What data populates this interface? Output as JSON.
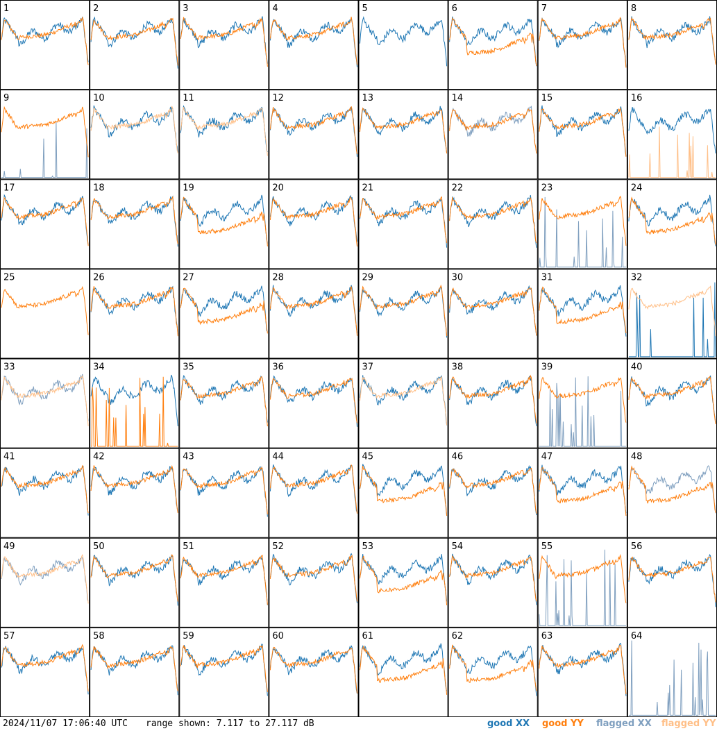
{
  "footer": {
    "timestamp": "2024/11/07 17:06:40 UTC",
    "range_text": "range shown: 7.117 to 27.117 dB"
  },
  "legend": {
    "good_xx": "good XX",
    "good_yy": "good YY",
    "flagged_xx": "flagged XX",
    "flagged_yy": "flagged YY"
  },
  "colors": {
    "good_xx": "#1f77b4",
    "good_yy": "#ff7f0e",
    "flagged_xx": "#7f9fbf",
    "flagged_yy": "#ffbf87",
    "panel_border": "#000000"
  },
  "chart_data": {
    "type": "line",
    "layout": "8x8 small multiples",
    "y_range_db": [
      7.117,
      27.117
    ],
    "panel_labels": [
      "1",
      "2",
      "3",
      "4",
      "5",
      "6",
      "7",
      "8",
      "9",
      "10",
      "11",
      "12",
      "13",
      "14",
      "15",
      "16",
      "17",
      "18",
      "19",
      "20",
      "21",
      "22",
      "23",
      "24",
      "25",
      "26",
      "27",
      "28",
      "29",
      "30",
      "31",
      "32",
      "33",
      "34",
      "35",
      "36",
      "37",
      "38",
      "39",
      "40",
      "41",
      "42",
      "43",
      "44",
      "45",
      "46",
      "47",
      "48",
      "49",
      "50",
      "51",
      "52",
      "53",
      "54",
      "55",
      "56",
      "57",
      "58",
      "59",
      "60",
      "61",
      "62",
      "63",
      "64"
    ],
    "series_status": {
      "flagged_xx_panels": [
        9,
        14,
        23,
        25,
        33,
        39,
        48,
        49,
        55,
        64
      ],
      "flagged_yy_panels": [
        5,
        10,
        11,
        16,
        32,
        33,
        37,
        49,
        64
      ],
      "missing_xx_panels": [
        25
      ],
      "missing_yy_panels": [
        5,
        64
      ],
      "dropout_xx_panels": [
        9,
        23,
        32,
        39,
        55,
        64
      ],
      "dropout_yy_panels": [
        5,
        16,
        34,
        64
      ],
      "low_yy_panels": [
        6,
        19,
        24,
        27,
        31,
        45,
        47,
        48,
        53,
        61,
        62
      ]
    }
  }
}
